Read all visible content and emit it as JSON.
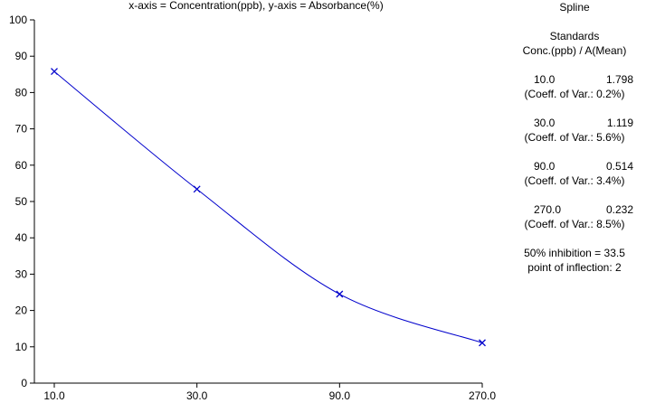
{
  "chart_data": {
    "type": "line",
    "title": "x-axis = Concentration(ppb), y-axis = Absorbance(%)",
    "x_scale": "log",
    "categories": [
      "10.0",
      "30.0",
      "90.0",
      "270.0"
    ],
    "x": [
      10,
      30,
      90,
      270
    ],
    "y": [
      85.8,
      53.4,
      24.5,
      11.1
    ],
    "ylim": [
      0,
      100
    ],
    "yticks": [
      "0",
      "10",
      "20",
      "30",
      "40",
      "50",
      "60",
      "70",
      "80",
      "90",
      "100"
    ],
    "marker": "x",
    "line_color": "#0000cc",
    "curve": "spline",
    "grid": false
  },
  "panel": {
    "title": "Spline",
    "header1": "Standards",
    "header2": "Conc.(ppb) / A(Mean)",
    "standards": [
      {
        "conc": "10.0",
        "mean": "1.798",
        "cv": "(Coeff. of Var.: 0.2%)"
      },
      {
        "conc": "30.0",
        "mean": "1.119",
        "cv": "(Coeff. of Var.: 5.6%)"
      },
      {
        "conc": "90.0",
        "mean": "0.514",
        "cv": "(Coeff. of Var.: 3.4%)"
      },
      {
        "conc": "270.0",
        "mean": "0.232",
        "cv": "(Coeff. of Var.: 8.5%)"
      }
    ],
    "inhibition": "50% inhibition = 33.5",
    "inflection": "point of inflection: 2"
  }
}
